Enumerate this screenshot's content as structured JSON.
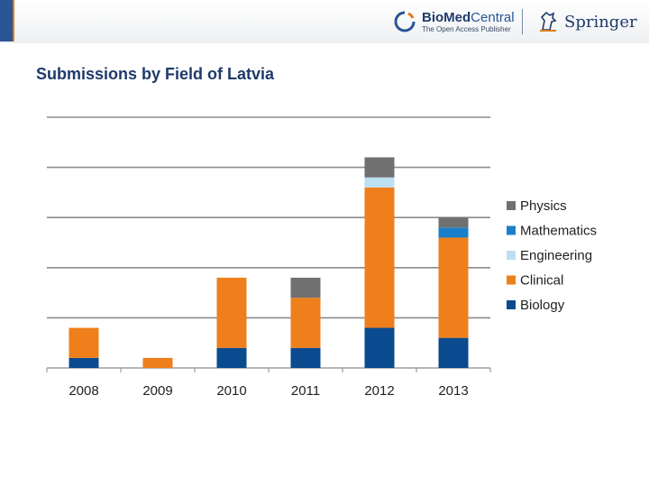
{
  "header": {
    "biomed_name_bold": "BioMed",
    "biomed_name_light": "Central",
    "biomed_tagline": "The Open Access Publisher",
    "springer_name": "Springer",
    "accent_color": "#2a5596",
    "brand_orange": "#e07a1a"
  },
  "chart_data": {
    "type": "bar",
    "stacked": true,
    "title": "Submissions by Field of Latvia",
    "xlabel": "",
    "ylabel": "",
    "categories": [
      "2008",
      "2009",
      "2010",
      "2011",
      "2012",
      "2013"
    ],
    "ylim": [
      0,
      5
    ],
    "gridlines": [
      0,
      1,
      2,
      3,
      4,
      5
    ],
    "legend_position": "right",
    "series": [
      {
        "name": "Biology",
        "color": "#0a4a8e",
        "values": [
          0.2,
          0,
          0.4,
          0.4,
          0.8,
          0.6
        ]
      },
      {
        "name": "Clinical",
        "color": "#ee7f1b",
        "values": [
          0.6,
          0.2,
          1.4,
          1.0,
          2.8,
          2.0
        ]
      },
      {
        "name": "Engineering",
        "color": "#bcdff2",
        "values": [
          0,
          0,
          0,
          0,
          0.2,
          0
        ]
      },
      {
        "name": "Mathematics",
        "color": "#1a7fc9",
        "values": [
          0,
          0,
          0,
          0,
          0,
          0.2
        ]
      },
      {
        "name": "Physics",
        "color": "#707070",
        "values": [
          0,
          0,
          0,
          0.4,
          0.4,
          0.2
        ]
      }
    ],
    "legend_order": [
      "Physics",
      "Mathematics",
      "Engineering",
      "Clinical",
      "Biology"
    ]
  }
}
